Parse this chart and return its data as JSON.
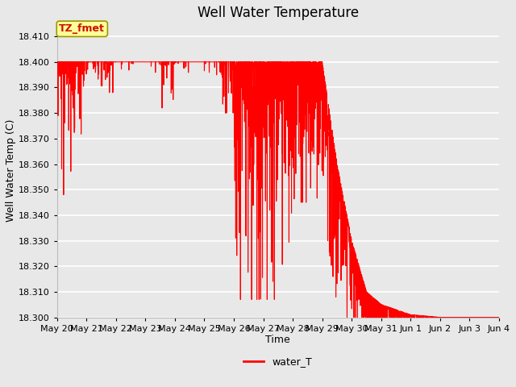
{
  "title": "Well Water Temperature",
  "xlabel": "Time",
  "ylabel": "Well Water Temp (C)",
  "legend_label": "water_T",
  "line_color": "#FF0000",
  "line_width": 0.8,
  "ylim": [
    18.3,
    18.415
  ],
  "yticks": [
    18.3,
    18.31,
    18.32,
    18.33,
    18.34,
    18.35,
    18.36,
    18.37,
    18.38,
    18.39,
    18.4,
    18.41
  ],
  "plot_bg_color": "#E8E8E8",
  "grid_color": "#FFFFFF",
  "annotation_text": "TZ_fmet",
  "annotation_bg": "#FFFF99",
  "title_fontsize": 12,
  "axis_fontsize": 9,
  "tick_fontsize": 8,
  "tick_labels": [
    "May 20",
    "May 21",
    "May 22",
    "May 23",
    "May 24",
    "May 25",
    "May 26",
    "May 27",
    "May 28",
    "May 29",
    "May 30",
    "May 31",
    "Jun 1",
    "Jun 2",
    "Jun 3",
    "Jun 4"
  ]
}
